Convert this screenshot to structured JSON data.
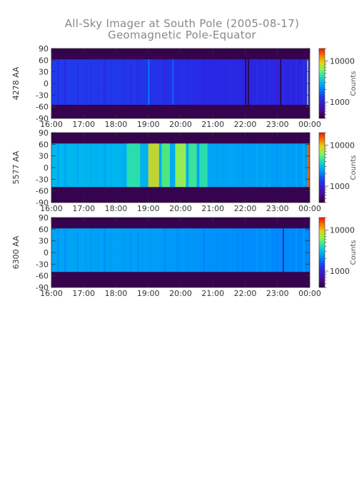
{
  "title": "All-Sky Imager at South Pole (2005-08-17)",
  "subtitle": "Geomagnetic Pole-Equator",
  "chart_data": [
    {
      "type": "heatmap",
      "ylabel": "4278 AA",
      "colorbar_label": "Counts",
      "colorbar_ticks": [
        "10000",
        "1000"
      ],
      "colorscale": "log",
      "colorbar_range": [
        400,
        20000
      ],
      "xticks": [
        "16:00",
        "17:00",
        "18:00",
        "19:00",
        "20:00",
        "21:00",
        "22:00",
        "23:00",
        "00:00"
      ],
      "yticks": [
        "90",
        "60",
        "30",
        "0",
        "-30",
        "-60",
        "-90"
      ],
      "ylim": [
        -90,
        90
      ],
      "data_latitude_range": [
        -55,
        62
      ],
      "background_level": 1200,
      "dark_level": 450,
      "vertical_streaks": [
        {
          "time": "19:00",
          "level": 2200
        },
        {
          "time": "19:45",
          "level": 1900
        },
        {
          "time": "22:00",
          "level": 350
        },
        {
          "time": "22:05",
          "level": 350
        },
        {
          "time": "23:05",
          "level": 350
        },
        {
          "time": "23:55",
          "level": 9000
        }
      ]
    },
    {
      "type": "heatmap",
      "ylabel": "5577 AA",
      "colorbar_label": "Counts",
      "colorbar_ticks": [
        "10000",
        "1000"
      ],
      "colorscale": "log",
      "colorbar_range": [
        400,
        20000
      ],
      "xticks": [
        "16:00",
        "17:00",
        "18:00",
        "19:00",
        "20:00",
        "21:00",
        "22:00",
        "23:00",
        "00:00"
      ],
      "yticks": [
        "90",
        "60",
        "30",
        "0",
        "-30",
        "-60",
        "-90"
      ],
      "ylim": [
        -90,
        90
      ],
      "data_latitude_range": [
        -50,
        62
      ],
      "background_level": 2600,
      "dark_level": 450,
      "bright_bands": [
        {
          "start": "18:20",
          "end": "18:45",
          "level": 4500
        },
        {
          "start": "19:00",
          "end": "19:20",
          "level": 9000
        },
        {
          "start": "19:25",
          "end": "19:40",
          "level": 5500
        },
        {
          "start": "19:50",
          "end": "20:10",
          "level": 7000
        },
        {
          "start": "20:15",
          "end": "20:30",
          "level": 5000
        },
        {
          "start": "20:35",
          "end": "20:50",
          "level": 4500
        },
        {
          "start": "23:55",
          "end": "00:00",
          "level": 15000
        }
      ]
    },
    {
      "type": "heatmap",
      "ylabel": "6300 AA",
      "colorbar_label": "Counts",
      "colorbar_ticks": [
        "10000",
        "1000"
      ],
      "colorscale": "log",
      "colorbar_range": [
        400,
        20000
      ],
      "xticks": [
        "16:00",
        "17:00",
        "18:00",
        "19:00",
        "20:00",
        "21:00",
        "22:00",
        "23:00",
        "00:00"
      ],
      "yticks": [
        "90",
        "60",
        "30",
        "0",
        "-30",
        "-60",
        "-90"
      ],
      "ylim": [
        -90,
        90
      ],
      "data_latitude_range": [
        -50,
        62
      ],
      "background_level": 2300,
      "dark_level": 450,
      "vertical_streaks": [
        {
          "time": "23:10",
          "level": 600
        }
      ]
    }
  ]
}
